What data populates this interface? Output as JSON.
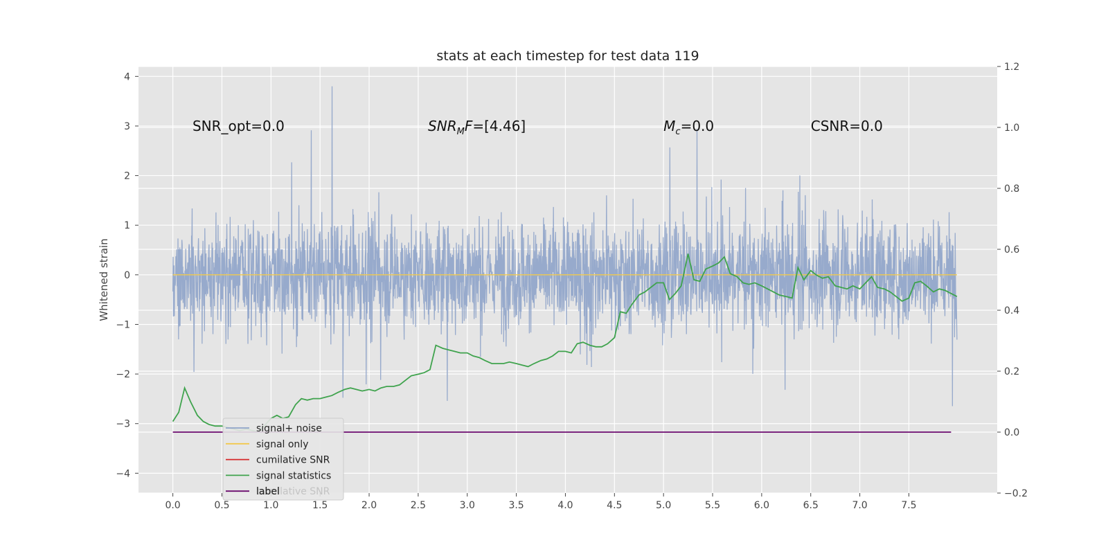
{
  "chart_data": {
    "type": "line",
    "title": "stats at each timestep for test data 119",
    "ylabel": "Whitened strain",
    "xlim": [
      -0.35,
      8.4
    ],
    "ylim": [
      -4.4,
      4.2
    ],
    "y2lim": [
      -0.2,
      1.2
    ],
    "x_ticks": [
      "0.0",
      "0.5",
      "1.0",
      "1.5",
      "2.0",
      "2.5",
      "3.0",
      "3.5",
      "4.0",
      "4.5",
      "5.0",
      "5.5",
      "6.0",
      "6.5",
      "7.0",
      "7.5"
    ],
    "x_tick_values": [
      0,
      0.5,
      1,
      1.5,
      2,
      2.5,
      3,
      3.5,
      4,
      4.5,
      5,
      5.5,
      6,
      6.5,
      7,
      7.5
    ],
    "y_ticks": [
      "4",
      "3",
      "2",
      "1",
      "0",
      "−1",
      "−2",
      "−3",
      "−4"
    ],
    "y_tick_values": [
      4,
      3,
      2,
      1,
      0,
      -1,
      -2,
      -3,
      -4
    ],
    "y2_ticks": [
      "1.2",
      "1.0",
      "0.8",
      "0.6",
      "0.4",
      "0.2",
      "0.0",
      "−0.2"
    ],
    "y2_tick_values": [
      1.2,
      1.0,
      0.8,
      0.6,
      0.4,
      0.2,
      0.0,
      -0.2
    ],
    "grid": true,
    "annotations": [
      {
        "label": "SNR_opt=0.0",
        "x": 0.2,
        "y": 3.0
      },
      {
        "label": "SNR",
        "sub": "M",
        "suffix": "F=[4.46]",
        "italic": true,
        "x": 2.6,
        "y": 3.0
      },
      {
        "label": "M",
        "sub": "c",
        "suffix": "=0.0",
        "italic": true,
        "x": 5.0,
        "y": 3.0
      },
      {
        "label": "CSNR=0.0",
        "x": 6.5,
        "y": 3.0
      }
    ],
    "legend": {
      "placement": "lower-left",
      "entries": [
        {
          "name": "signal+ noise",
          "color": "#8ea3c9"
        },
        {
          "name": "signal only",
          "color": "#f2c94c"
        },
        {
          "name": "cumilative SNR",
          "color": "#d62728"
        },
        {
          "name": "signal statistics",
          "color": "#3fa34d"
        },
        {
          "name": "label",
          "color": "#6b0a6e"
        }
      ],
      "hidden_text": "cumilative SNR"
    },
    "series": [
      {
        "name": "signal+ noise",
        "axis": "left",
        "color": "#8ea3c9",
        "x_start": 0,
        "x_end": 7.99,
        "band": [
          -1.0,
          1.1
        ],
        "spike_max": [
          -4.0,
          3.8
        ]
      },
      {
        "name": "signal only",
        "axis": "left",
        "color": "#f2c94c",
        "x": [
          0,
          7.99
        ],
        "values": [
          0,
          0
        ]
      },
      {
        "name": "signal statistics",
        "axis": "right",
        "color": "#3fa34d",
        "x": [
          0,
          0.06,
          0.12,
          0.18,
          0.25,
          0.31,
          0.37,
          0.43,
          0.5,
          0.56,
          0.62,
          0.68,
          0.75,
          0.81,
          0.87,
          0.93,
          1.0,
          1.06,
          1.12,
          1.18,
          1.25,
          1.31,
          1.37,
          1.43,
          1.5,
          1.56,
          1.62,
          1.68,
          1.75,
          1.81,
          1.87,
          1.93,
          2.0,
          2.06,
          2.12,
          2.18,
          2.25,
          2.31,
          2.37,
          2.43,
          2.5,
          2.56,
          2.62,
          2.68,
          2.75,
          2.81,
          2.87,
          2.93,
          3.0,
          3.06,
          3.12,
          3.18,
          3.25,
          3.31,
          3.37,
          3.43,
          3.5,
          3.56,
          3.62,
          3.68,
          3.75,
          3.81,
          3.87,
          3.93,
          4.0,
          4.06,
          4.12,
          4.18,
          4.25,
          4.31,
          4.37,
          4.43,
          4.5,
          4.56,
          4.62,
          4.68,
          4.75,
          4.81,
          4.87,
          4.93,
          5.0,
          5.06,
          5.12,
          5.18,
          5.25,
          5.31,
          5.37,
          5.43,
          5.5,
          5.56,
          5.62,
          5.68,
          5.75,
          5.81,
          5.87,
          5.93,
          6.0,
          6.06,
          6.12,
          6.18,
          6.25,
          6.31,
          6.37,
          6.43,
          6.5,
          6.56,
          6.62,
          6.68,
          6.75,
          6.81,
          6.87,
          6.93,
          7.0,
          7.06,
          7.12,
          7.18,
          7.25,
          7.31,
          7.37,
          7.43,
          7.5,
          7.56,
          7.62,
          7.68,
          7.75,
          7.81,
          7.87,
          7.93,
          7.99
        ],
        "values": [
          0.035,
          0.065,
          0.145,
          0.1,
          0.055,
          0.035,
          0.025,
          0.02,
          0.02,
          0.015,
          0.01,
          0.005,
          0.01,
          0.005,
          0.0,
          0.02,
          0.045,
          0.055,
          0.045,
          0.05,
          0.09,
          0.11,
          0.105,
          0.11,
          0.11,
          0.115,
          0.12,
          0.13,
          0.14,
          0.145,
          0.14,
          0.135,
          0.14,
          0.135,
          0.145,
          0.15,
          0.15,
          0.155,
          0.17,
          0.185,
          0.19,
          0.195,
          0.205,
          0.285,
          0.275,
          0.27,
          0.265,
          0.26,
          0.26,
          0.25,
          0.245,
          0.235,
          0.225,
          0.225,
          0.225,
          0.23,
          0.225,
          0.22,
          0.215,
          0.225,
          0.235,
          0.24,
          0.25,
          0.265,
          0.265,
          0.26,
          0.29,
          0.295,
          0.285,
          0.28,
          0.28,
          0.29,
          0.31,
          0.395,
          0.39,
          0.42,
          0.45,
          0.46,
          0.475,
          0.49,
          0.49,
          0.435,
          0.455,
          0.48,
          0.585,
          0.5,
          0.495,
          0.535,
          0.545,
          0.555,
          0.575,
          0.52,
          0.51,
          0.49,
          0.485,
          0.49,
          0.48,
          0.47,
          0.46,
          0.45,
          0.445,
          0.44,
          0.54,
          0.5,
          0.53,
          0.515,
          0.505,
          0.51,
          0.48,
          0.475,
          0.47,
          0.48,
          0.47,
          0.49,
          0.51,
          0.475,
          0.47,
          0.46,
          0.445,
          0.43,
          0.44,
          0.49,
          0.495,
          0.48,
          0.46,
          0.47,
          0.465,
          0.455,
          0.445
        ]
      },
      {
        "name": "label",
        "axis": "right",
        "color": "#6b0a6e",
        "x": [
          0,
          7.93
        ],
        "values": [
          0,
          0
        ]
      }
    ]
  }
}
